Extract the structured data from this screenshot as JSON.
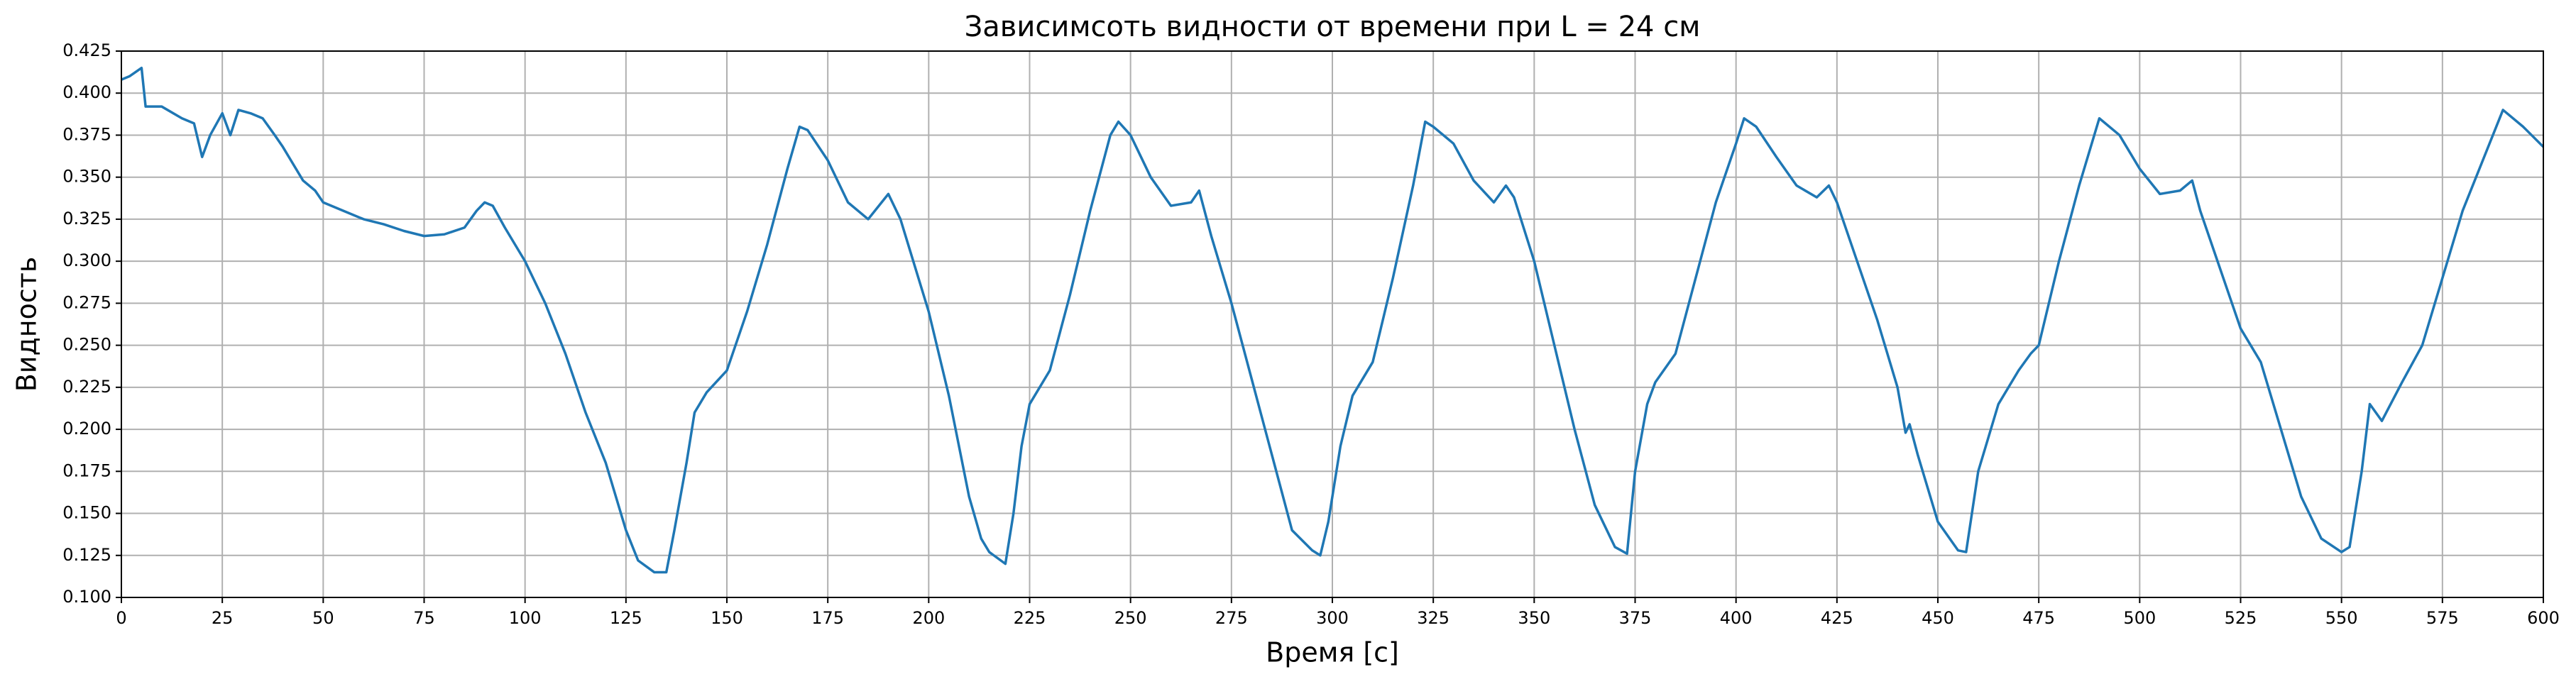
{
  "chart_data": {
    "type": "line",
    "title": "Зависимсоть видности от времени при L = 24 см",
    "x_label": "Время [с]",
    "y_label": "Видность",
    "xlim": [
      0,
      600
    ],
    "ylim": [
      0.1,
      0.425
    ],
    "xticks": [
      0,
      25,
      50,
      75,
      100,
      125,
      150,
      175,
      200,
      225,
      250,
      275,
      300,
      325,
      350,
      375,
      400,
      425,
      450,
      475,
      500,
      525,
      550,
      575,
      600
    ],
    "yticks": [
      {
        "value": 0.1,
        "label": "0.100"
      },
      {
        "value": 0.125,
        "label": "0.125"
      },
      {
        "value": 0.15,
        "label": "0.150"
      },
      {
        "value": 0.175,
        "label": "0.175"
      },
      {
        "value": 0.2,
        "label": "0.200"
      },
      {
        "value": 0.225,
        "label": "0.225"
      },
      {
        "value": 0.25,
        "label": "0.250"
      },
      {
        "value": 0.275,
        "label": "0.275"
      },
      {
        "value": 0.3,
        "label": "0.300"
      },
      {
        "value": 0.325,
        "label": "0.325"
      },
      {
        "value": 0.35,
        "label": "0.350"
      },
      {
        "value": 0.375,
        "label": "0.375"
      },
      {
        "value": 0.4,
        "label": "0.400"
      },
      {
        "value": 0.425,
        "label": "0.425"
      }
    ],
    "grid": true,
    "x": [
      0,
      2,
      5,
      6,
      10,
      15,
      18,
      20,
      22,
      25,
      27,
      29,
      32,
      35,
      38,
      40,
      42,
      45,
      48,
      50,
      55,
      60,
      65,
      70,
      75,
      80,
      85,
      88,
      90,
      92,
      95,
      100,
      105,
      110,
      115,
      120,
      125,
      128,
      132,
      135,
      137,
      140,
      142,
      145,
      150,
      155,
      160,
      165,
      168,
      170,
      175,
      180,
      185,
      190,
      193,
      200,
      205,
      210,
      213,
      215,
      219,
      221,
      223,
      225,
      230,
      235,
      240,
      245,
      247,
      250,
      255,
      260,
      265,
      267,
      270,
      275,
      280,
      285,
      290,
      295,
      297,
      299,
      302,
      305,
      310,
      315,
      320,
      323,
      325,
      330,
      335,
      340,
      343,
      345,
      350,
      355,
      360,
      365,
      370,
      373,
      375,
      378,
      380,
      385,
      390,
      395,
      400,
      402,
      405,
      410,
      415,
      420,
      423,
      425,
      430,
      435,
      440,
      442,
      443,
      445,
      450,
      455,
      457,
      460,
      465,
      470,
      473,
      475,
      480,
      485,
      490,
      495,
      500,
      505,
      510,
      513,
      515,
      520,
      525,
      530,
      535,
      540,
      545,
      550,
      552,
      555,
      557,
      560,
      565,
      570,
      575,
      580,
      585,
      590,
      595,
      600
    ],
    "series": [
      {
        "color": "#1f77b4",
        "values": [
          0.408,
          0.41,
          0.415,
          0.392,
          0.392,
          0.385,
          0.382,
          0.362,
          0.375,
          0.388,
          0.375,
          0.39,
          0.388,
          0.385,
          0.375,
          0.368,
          0.36,
          0.348,
          0.342,
          0.335,
          0.33,
          0.325,
          0.322,
          0.318,
          0.315,
          0.316,
          0.32,
          0.33,
          0.335,
          0.333,
          0.32,
          0.3,
          0.275,
          0.245,
          0.21,
          0.18,
          0.14,
          0.122,
          0.115,
          0.115,
          0.14,
          0.18,
          0.21,
          0.222,
          0.235,
          0.27,
          0.31,
          0.355,
          0.38,
          0.378,
          0.36,
          0.335,
          0.325,
          0.34,
          0.325,
          0.27,
          0.22,
          0.16,
          0.135,
          0.127,
          0.12,
          0.15,
          0.19,
          0.215,
          0.235,
          0.28,
          0.33,
          0.375,
          0.383,
          0.375,
          0.35,
          0.333,
          0.335,
          0.342,
          0.315,
          0.275,
          0.23,
          0.185,
          0.14,
          0.128,
          0.125,
          0.145,
          0.19,
          0.22,
          0.24,
          0.29,
          0.345,
          0.383,
          0.38,
          0.37,
          0.348,
          0.335,
          0.345,
          0.338,
          0.3,
          0.25,
          0.2,
          0.155,
          0.13,
          0.126,
          0.175,
          0.215,
          0.228,
          0.245,
          0.29,
          0.335,
          0.37,
          0.385,
          0.38,
          0.362,
          0.345,
          0.338,
          0.345,
          0.335,
          0.3,
          0.265,
          0.225,
          0.198,
          0.203,
          0.185,
          0.145,
          0.128,
          0.127,
          0.175,
          0.215,
          0.235,
          0.245,
          0.25,
          0.3,
          0.345,
          0.385,
          0.375,
          0.355,
          0.34,
          0.342,
          0.348,
          0.33,
          0.295,
          0.26,
          0.24,
          0.2,
          0.16,
          0.135,
          0.127,
          0.13,
          0.175,
          0.215,
          0.205,
          0.228,
          0.25,
          0.29,
          0.33,
          0.36,
          0.39,
          0.38,
          0.368
        ]
      }
    ]
  }
}
